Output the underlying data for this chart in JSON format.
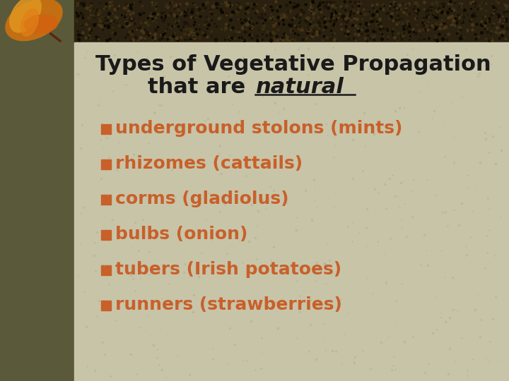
{
  "title_line1": "Types of Vegetative Propagation",
  "title_line2_plain": "that are ",
  "title_line2_italic": "natural",
  "bullet_items": [
    "underground stolons (mints)",
    "rhizomes (cattails)",
    "corms (gladiolus)",
    "bulbs (onion)",
    "tubers (Irish potatoes)",
    "runners (strawberries)"
  ],
  "bg_main": "#c8c4a8",
  "bg_left_strip": "#5a5a3a",
  "bg_top_strip": "#2a2010",
  "title_color": "#1a1a1a",
  "bullet_color": "#c8602a",
  "bullet_square_color": "#c8602a",
  "fig_width": 7.2,
  "fig_height": 5.4,
  "dpi": 100
}
